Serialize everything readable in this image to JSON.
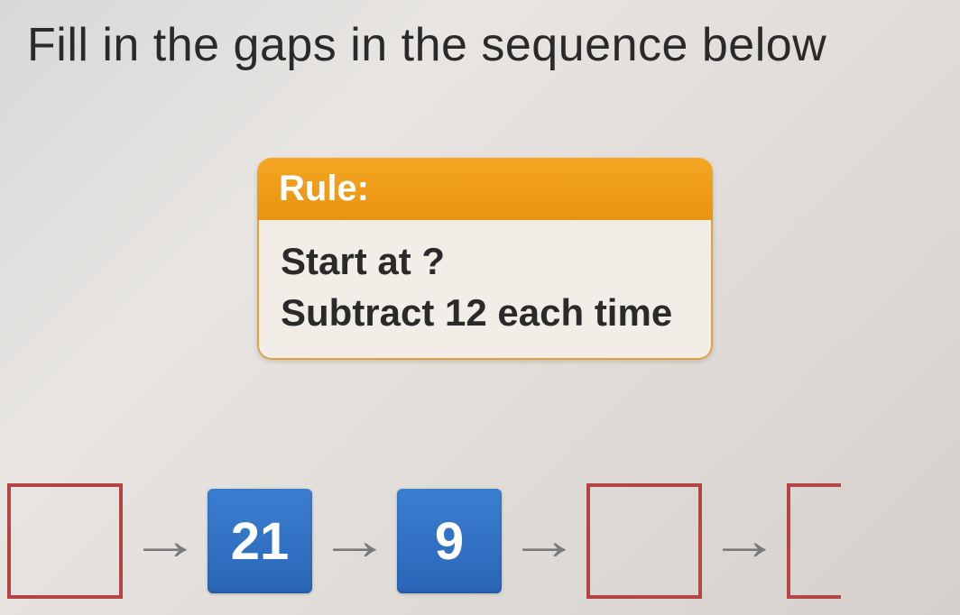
{
  "title": "Fill in the gaps in the sequence below",
  "rule_card": {
    "header": "Rule:",
    "line1": "Start at ?",
    "line2": "Subtract 12 each time",
    "header_bg_start": "#f5a623",
    "header_bg_end": "#e89410",
    "body_bg": "#f2eee7",
    "border_color": "#e0a040"
  },
  "sequence": {
    "boxes": [
      {
        "type": "empty"
      },
      {
        "type": "filled",
        "value": "21"
      },
      {
        "type": "filled",
        "value": "9"
      },
      {
        "type": "empty"
      },
      {
        "type": "partial"
      }
    ],
    "empty_border_color": "#b54545",
    "filled_bg_start": "#3b7fd0",
    "filled_bg_end": "#2a66b8",
    "arrow_color": "#7a7a7a",
    "arrow_glyph": "→"
  }
}
